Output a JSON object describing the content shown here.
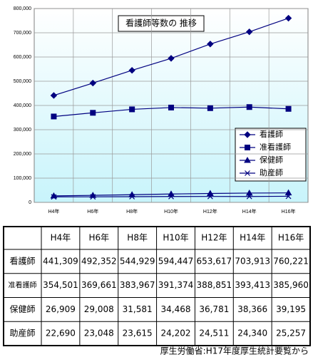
{
  "chart_data": {
    "type": "line",
    "title": "看護師等数の 推移",
    "categories": [
      "H4年",
      "H6年",
      "H8年",
      "H10年",
      "H12年",
      "H14年",
      "H16年"
    ],
    "series": [
      {
        "name": "看護師",
        "color": "#000080",
        "marker": "diamond",
        "values": [
          441309,
          492352,
          544929,
          594447,
          653617,
          703913,
          760221
        ]
      },
      {
        "name": "准看護師",
        "color": "#000080",
        "marker": "square",
        "values": [
          354501,
          369661,
          383967,
          391374,
          388851,
          393413,
          385960
        ]
      },
      {
        "name": "保健師",
        "color": "#000080",
        "marker": "triangle",
        "values": [
          26909,
          29008,
          31581,
          34468,
          36781,
          38366,
          39195
        ]
      },
      {
        "name": "助産師",
        "color": "#000080",
        "marker": "x",
        "values": [
          22690,
          23048,
          23615,
          24202,
          24511,
          24340,
          25257
        ]
      }
    ],
    "ylim": [
      0,
      800000
    ],
    "yticks": [
      0,
      {
        "value": 100000,
        "label": "100,000"
      },
      {
        "value": 200000,
        "label": "200,000"
      },
      {
        "value": 300000,
        "label": "300,000"
      },
      {
        "value": 400000,
        "label": "400,000"
      },
      {
        "value": 500000,
        "label": "500,000"
      },
      {
        "value": 600000,
        "label": "600,000"
      },
      {
        "value": 700000,
        "label": "700,000"
      },
      {
        "value": 800000,
        "label": "800,000"
      }
    ],
    "grid": true,
    "legend": "right"
  },
  "table": {
    "header": [
      "H4年",
      "H6年",
      "H8年",
      "H10年",
      "H12年",
      "H14年",
      "H16年"
    ],
    "rows": [
      [
        "看護師",
        "441,309",
        "492,352",
        "544,929",
        "594,447",
        "653,617",
        "703,913",
        "760,221"
      ],
      [
        "准看護師",
        "354,501",
        "369,661",
        "383,967",
        "391,374",
        "388,851",
        "393,413",
        "385,960"
      ],
      [
        "保健師",
        "26,909",
        "29,008",
        "31,581",
        "34,468",
        "36,781",
        "38,366",
        "39,195"
      ],
      [
        "助産師",
        "22,690",
        "23,048",
        "23,615",
        "24,202",
        "24,511",
        "24,340",
        "25,257"
      ]
    ]
  },
  "source": "厚生労働省:H17年度厚生統計要覧から"
}
